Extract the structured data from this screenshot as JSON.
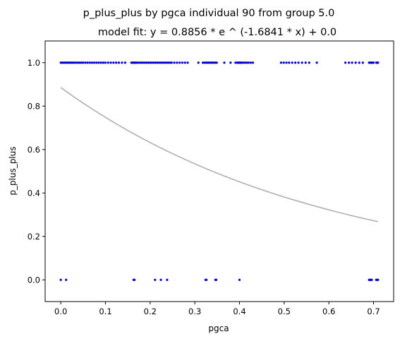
{
  "chart_data": {
    "type": "scatter",
    "title": "p_plus_plus by pgca individual 90 from group 5.0",
    "subtitle": "model fit: y = 0.8856 * e ^ (-1.6841 * x) + 0.0",
    "xlabel": "pgca",
    "ylabel": "p_plus_plus",
    "xlim": [
      -0.035,
      0.745
    ],
    "ylim": [
      -0.1,
      1.1
    ],
    "xticks": [
      0.0,
      0.1,
      0.2,
      0.3,
      0.4,
      0.5,
      0.6,
      0.7
    ],
    "xtick_labels": [
      "0.0",
      "0.1",
      "0.2",
      "0.3",
      "0.4",
      "0.5",
      "0.6",
      "0.7"
    ],
    "yticks": [
      0.0,
      0.2,
      0.4,
      0.6,
      0.8,
      1.0
    ],
    "ytick_labels": [
      "0.0",
      "0.2",
      "0.4",
      "0.6",
      "0.8",
      "1.0"
    ],
    "grid": false,
    "colors": {
      "points": "#0000cc",
      "fit": "#b0b0b0"
    },
    "fit": {
      "a": 0.8856,
      "b": -1.6841,
      "c": 0.0,
      "x_range": [
        0.0,
        0.71
      ]
    },
    "series": [
      {
        "values_y1_x": [
          0.0,
          0.003,
          0.006,
          0.009,
          0.012,
          0.015,
          0.018,
          0.021,
          0.024,
          0.027,
          0.03,
          0.034,
          0.038,
          0.042,
          0.046,
          0.05,
          0.055,
          0.06,
          0.065,
          0.07,
          0.075,
          0.08,
          0.085,
          0.09,
          0.095,
          0.1,
          0.106,
          0.112,
          0.118,
          0.124,
          0.13,
          0.137,
          0.144,
          0.158,
          0.161,
          0.163,
          0.165,
          0.167,
          0.169,
          0.172,
          0.176,
          0.18,
          0.184,
          0.188,
          0.192,
          0.196,
          0.2,
          0.204,
          0.208,
          0.212,
          0.216,
          0.22,
          0.224,
          0.228,
          0.232,
          0.236,
          0.24,
          0.244,
          0.248,
          0.254,
          0.26,
          0.266,
          0.272,
          0.278,
          0.284,
          0.308,
          0.318,
          0.322,
          0.325,
          0.328,
          0.331,
          0.334,
          0.337,
          0.34,
          0.343,
          0.346,
          0.349,
          0.366,
          0.38,
          0.391,
          0.395,
          0.397,
          0.399,
          0.401,
          0.403,
          0.405,
          0.408,
          0.412,
          0.416,
          0.42,
          0.425,
          0.43,
          0.493,
          0.499,
          0.505,
          0.511,
          0.518,
          0.525,
          0.532,
          0.54,
          0.548,
          0.556,
          0.573,
          0.637,
          0.645,
          0.652,
          0.66,
          0.668,
          0.676,
          0.69,
          0.692,
          0.694,
          0.696,
          0.698,
          0.7,
          0.706,
          0.708,
          0.71
        ],
        "values_y0_x": [
          0.0,
          0.012,
          0.163,
          0.165,
          0.211,
          0.224,
          0.238,
          0.324,
          0.326,
          0.346,
          0.348,
          0.4,
          0.69,
          0.692,
          0.694,
          0.696,
          0.706,
          0.708,
          0.71
        ]
      }
    ]
  }
}
